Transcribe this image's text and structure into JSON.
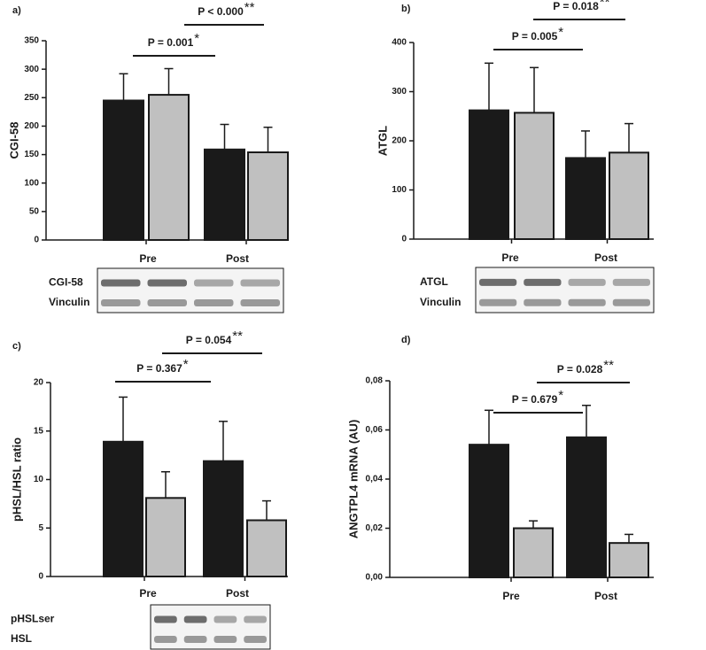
{
  "chart_data": [
    {
      "type": "bar",
      "panel_label": "a)",
      "ylabel": "CGI-58",
      "categories": [
        "Pre",
        "Post"
      ],
      "series": [
        {
          "color": "#1a1a1a",
          "values": [
            245,
            159
          ],
          "errors": [
            47,
            44
          ]
        },
        {
          "color": "#c0c0c0",
          "values": [
            255,
            154
          ],
          "errors": [
            46,
            44
          ]
        }
      ],
      "ylim": [
        0,
        350
      ],
      "yticks": [
        0,
        50,
        100,
        150,
        200,
        250,
        300,
        350
      ],
      "annotations": [
        {
          "text": "P = 0.001",
          "stars": "*"
        },
        {
          "text": "P < 0.000",
          "stars": "**"
        }
      ],
      "blot_labels": [
        "CGI-58",
        "Vinculin"
      ]
    },
    {
      "type": "bar",
      "panel_label": "b)",
      "ylabel": "ATGL",
      "categories": [
        "Pre",
        "Post"
      ],
      "series": [
        {
          "color": "#1a1a1a",
          "values": [
            262,
            165
          ],
          "errors": [
            96,
            55
          ]
        },
        {
          "color": "#c0c0c0",
          "values": [
            257,
            176
          ],
          "errors": [
            92,
            59
          ]
        }
      ],
      "ylim": [
        0,
        400
      ],
      "yticks": [
        0,
        100,
        200,
        300,
        400
      ],
      "annotations": [
        {
          "text": "P = 0.005",
          "stars": "*"
        },
        {
          "text": "P = 0.018",
          "stars": "**"
        }
      ],
      "blot_labels": [
        "ATGL",
        "Vinculin"
      ]
    },
    {
      "type": "bar",
      "panel_label": "c)",
      "ylabel": "pHSL/HSL ratio",
      "categories": [
        "Pre",
        "Post"
      ],
      "series": [
        {
          "color": "#1a1a1a",
          "values": [
            13.9,
            11.9
          ],
          "errors": [
            4.6,
            4.1
          ]
        },
        {
          "color": "#c0c0c0",
          "values": [
            8.1,
            5.8
          ],
          "errors": [
            2.7,
            2.0
          ]
        }
      ],
      "ylim": [
        0,
        20
      ],
      "yticks": [
        0,
        5,
        10,
        15,
        20
      ],
      "annotations": [
        {
          "text": "P = 0.367",
          "stars": "*"
        },
        {
          "text": "P = 0.054",
          "stars": "**"
        }
      ],
      "blot_labels": [
        "pHSLser",
        "HSL"
      ]
    },
    {
      "type": "bar",
      "panel_label": "d)",
      "ylabel": "ANGTPL4 mRNA (AU)",
      "categories": [
        "Pre",
        "Post"
      ],
      "series": [
        {
          "color": "#1a1a1a",
          "values": [
            0.054,
            0.057
          ],
          "errors": [
            0.014,
            0.013
          ]
        },
        {
          "color": "#c0c0c0",
          "values": [
            0.02,
            0.014
          ],
          "errors": [
            0.003,
            0.0035
          ]
        }
      ],
      "ylim": [
        0,
        0.08
      ],
      "yticks": [
        {
          "value": 0,
          "label": "0,00"
        },
        {
          "value": 0.02,
          "label": "0,02"
        },
        {
          "value": 0.04,
          "label": "0,04"
        },
        {
          "value": 0.06,
          "label": "0,06"
        },
        {
          "value": 0.08,
          "label": "0,08"
        }
      ],
      "annotations": [
        {
          "text": "P = 0.679",
          "stars": "*"
        },
        {
          "text": "P = 0.028",
          "stars": "**"
        }
      ]
    }
  ]
}
